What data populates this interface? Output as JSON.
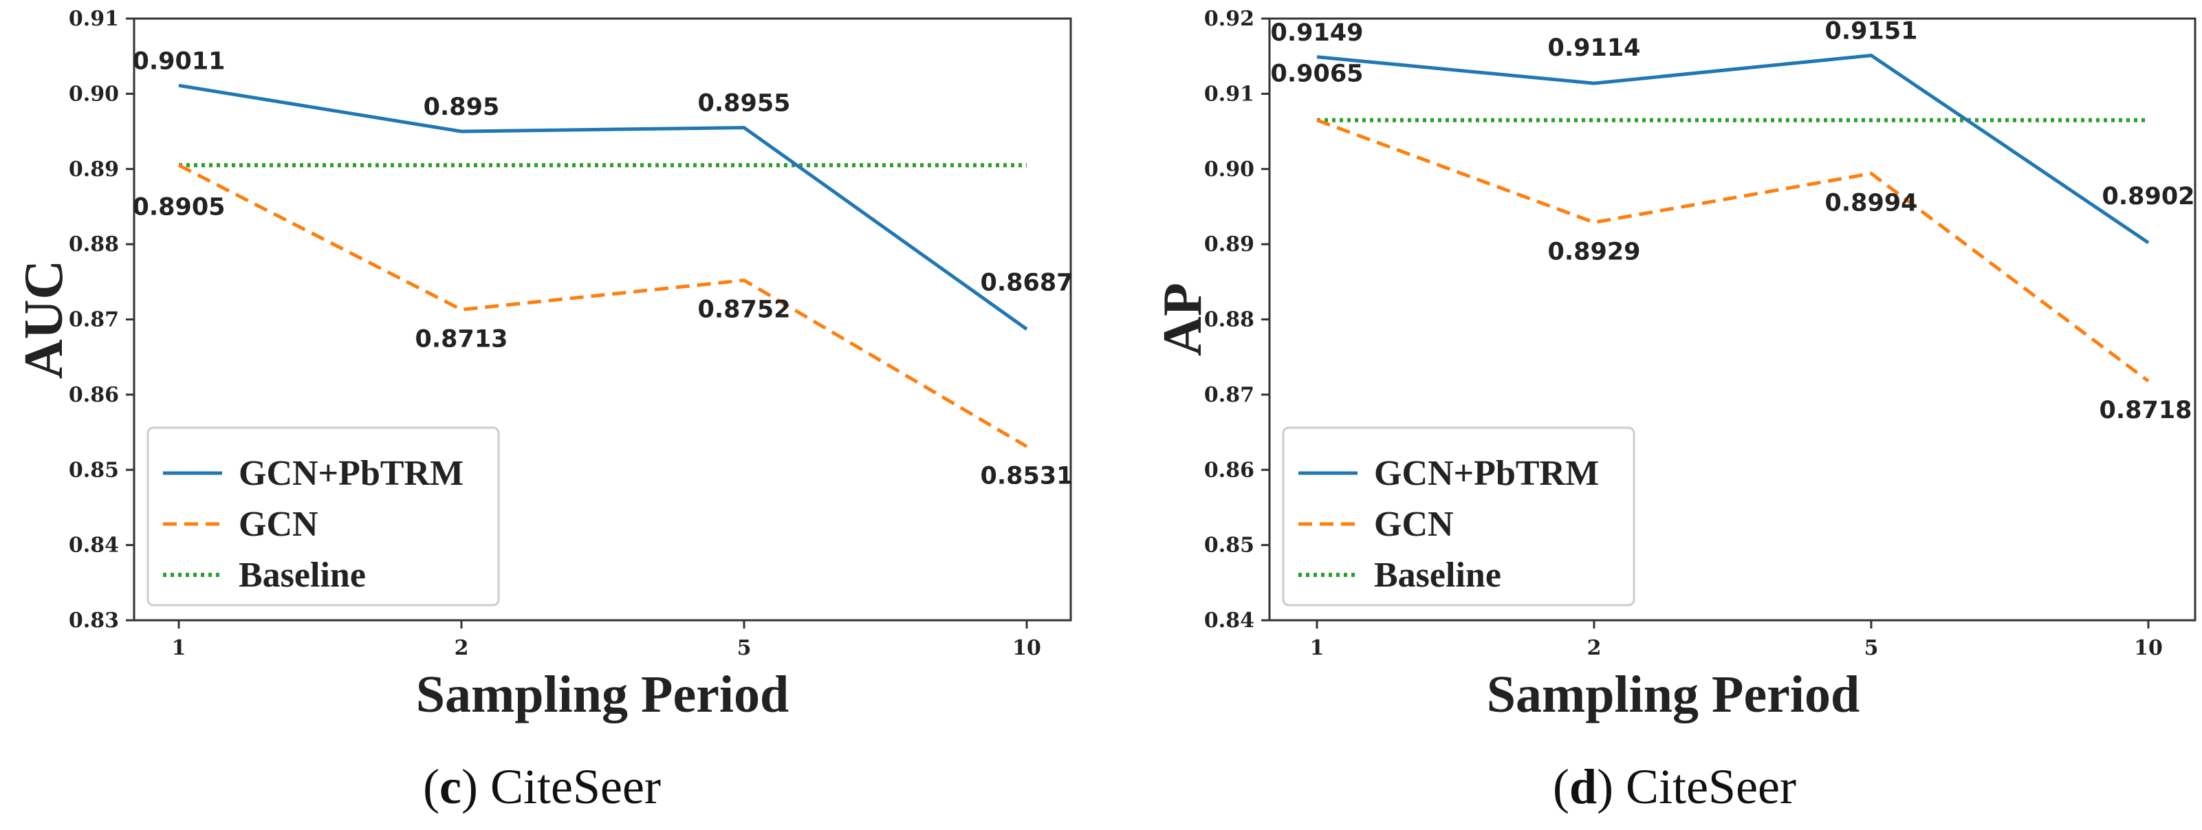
{
  "chart_data": [
    {
      "type": "line",
      "caption_letter": "c",
      "caption_text": "CiteSeer",
      "xlabel": "Sampling Period",
      "ylabel": "AUC",
      "categories": [
        "1",
        "2",
        "5",
        "10"
      ],
      "ylim": [
        0.83,
        0.91
      ],
      "yticks": [
        "0.83",
        "0.84",
        "0.85",
        "0.86",
        "0.87",
        "0.88",
        "0.89",
        "0.90",
        "0.91"
      ],
      "legend_position": "lower-left",
      "series": [
        {
          "name": "GCN+PbTRM",
          "color": "#1f77b4",
          "style": "solid",
          "values": [
            0.9011,
            0.895,
            0.8955,
            0.8687
          ],
          "labels": [
            "0.9011",
            "0.895",
            "0.8955",
            "0.8687"
          ]
        },
        {
          "name": "GCN",
          "color": "#ff7f0e",
          "style": "dashed",
          "values": [
            0.8905,
            0.8713,
            0.8752,
            0.8531
          ],
          "labels": [
            "0.8905",
            "0.8713",
            "0.8752",
            "0.8531"
          ]
        },
        {
          "name": "Baseline",
          "color": "#2ca02c",
          "style": "dotted",
          "values": [
            0.8905,
            0.8905,
            0.8905,
            0.8905
          ],
          "labels": []
        }
      ]
    },
    {
      "type": "line",
      "caption_letter": "d",
      "caption_text": "CiteSeer",
      "xlabel": "Sampling Period",
      "ylabel": "AP",
      "categories": [
        "1",
        "2",
        "5",
        "10"
      ],
      "ylim": [
        0.84,
        0.92
      ],
      "yticks": [
        "0.84",
        "0.85",
        "0.86",
        "0.87",
        "0.88",
        "0.89",
        "0.90",
        "0.91",
        "0.92"
      ],
      "legend_position": "lower-left",
      "series": [
        {
          "name": "GCN+PbTRM",
          "color": "#1f77b4",
          "style": "solid",
          "values": [
            0.9149,
            0.9114,
            0.9151,
            0.8902
          ],
          "labels": [
            "0.9149",
            "0.9114",
            "0.9151",
            "0.8902"
          ]
        },
        {
          "name": "GCN",
          "color": "#ff7f0e",
          "style": "dashed",
          "values": [
            0.9065,
            0.8929,
            0.8994,
            0.8718
          ],
          "labels": [
            "0.9065",
            "0.8929",
            "0.8994",
            "0.8718"
          ]
        },
        {
          "name": "Baseline",
          "color": "#2ca02c",
          "style": "dotted",
          "values": [
            0.9065,
            0.9065,
            0.9065,
            0.9065
          ],
          "labels": []
        }
      ]
    }
  ]
}
